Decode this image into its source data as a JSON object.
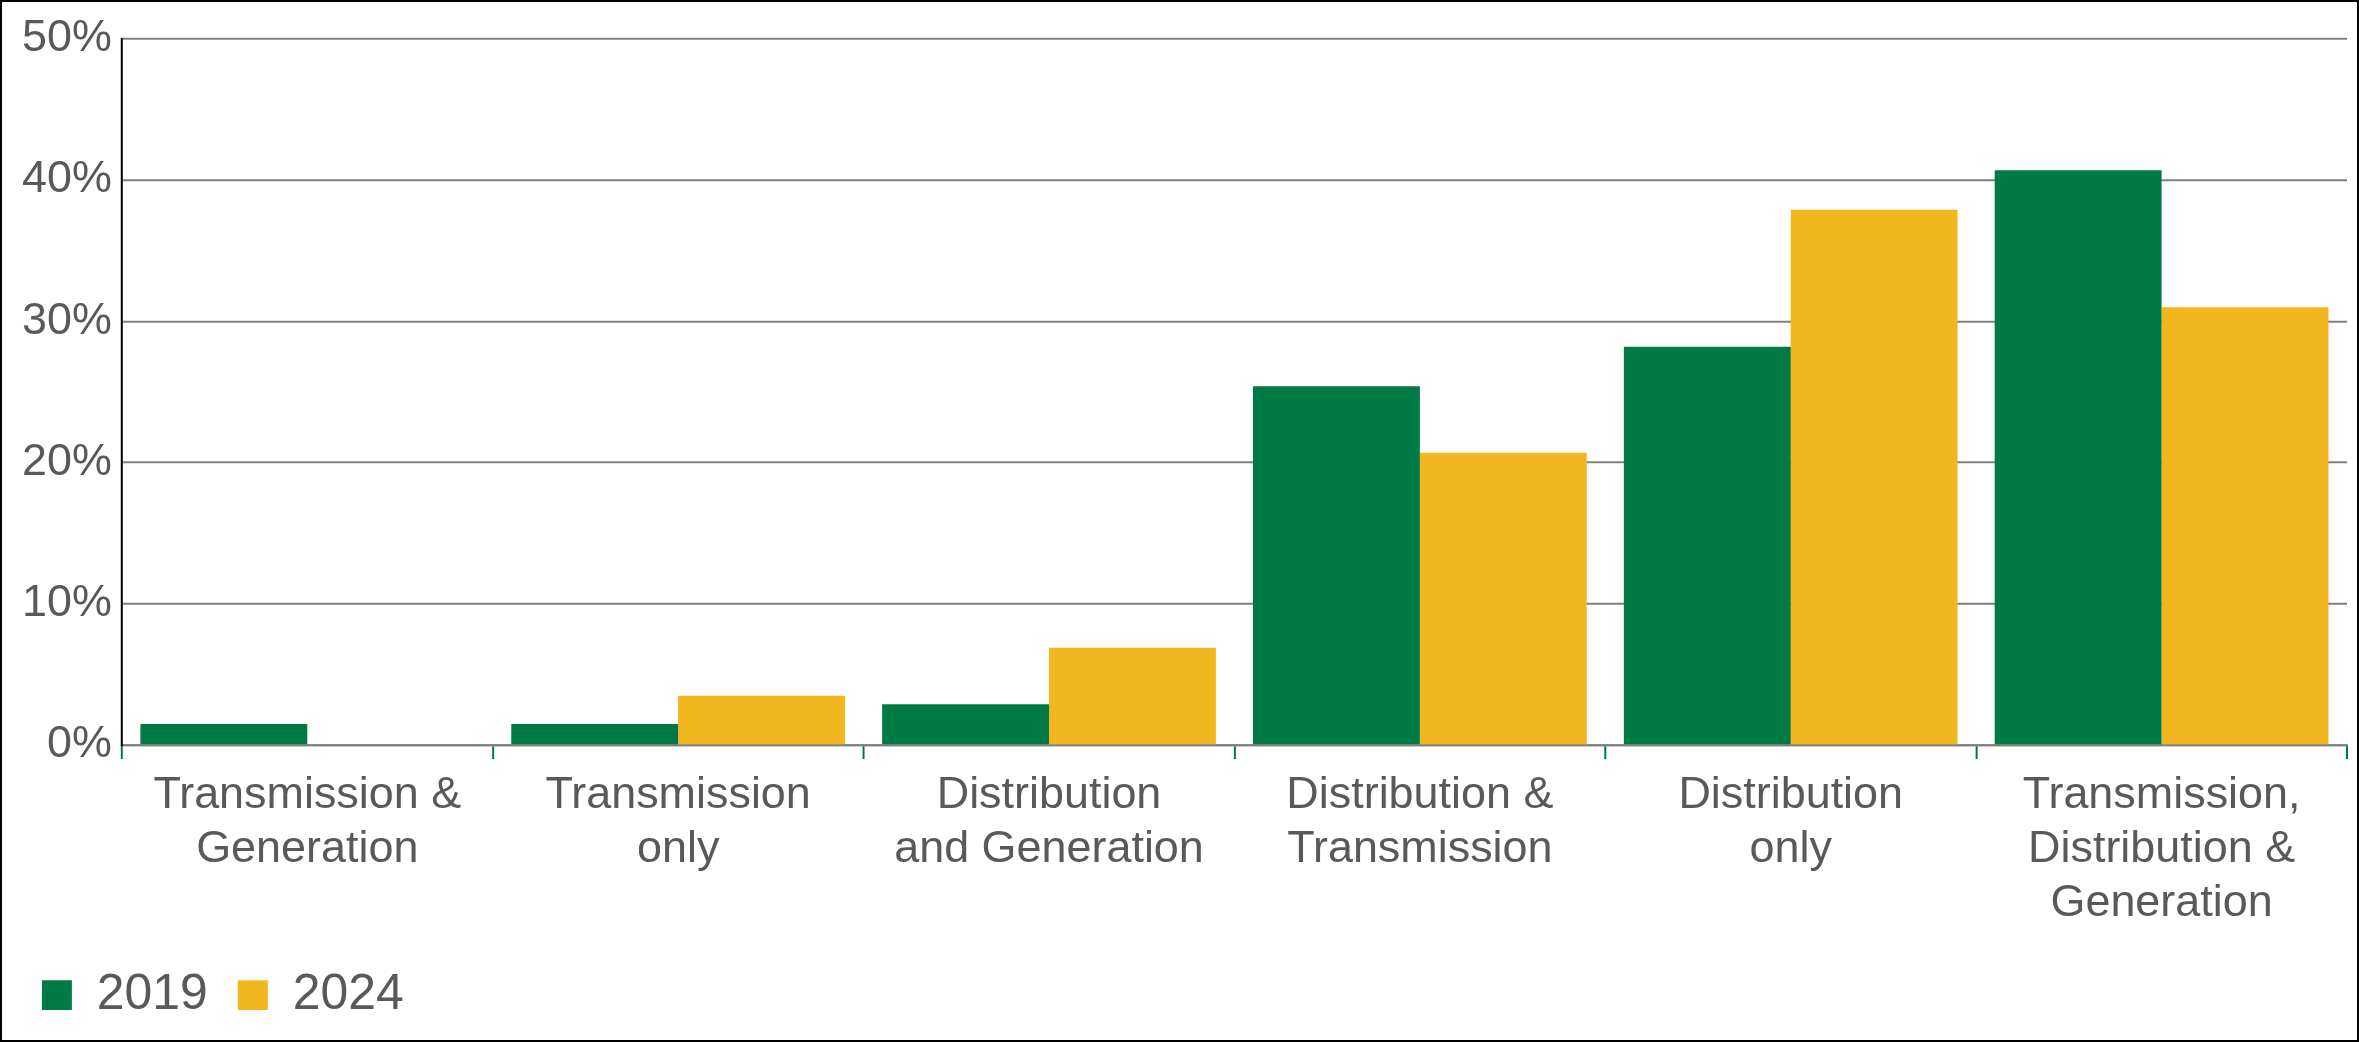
{
  "chart_data": {
    "type": "bar",
    "categories": [
      "Transmission & Generation",
      "Transmission only",
      "Distribution and Generation",
      "Distribution & Transmission",
      "Distribution only",
      "Transmission, Distribution & Generation"
    ],
    "series": [
      {
        "name": "2019",
        "color": "#007a45",
        "values": [
          1.5,
          1.5,
          2.9,
          25.4,
          28.2,
          40.7
        ]
      },
      {
        "name": "2024",
        "color": "#f2b71f",
        "values": [
          0,
          3.5,
          6.9,
          20.7,
          37.9,
          31.0
        ]
      }
    ],
    "ylim": [
      0,
      50
    ],
    "yticks": [
      {
        "value": 0,
        "label": "0%"
      },
      {
        "value": 10,
        "label": "10%"
      },
      {
        "value": 20,
        "label": "20%"
      },
      {
        "value": 30,
        "label": "30%"
      },
      {
        "value": 40,
        "label": "40%"
      },
      {
        "value": 50,
        "label": "50%"
      }
    ],
    "grid": "y",
    "legend": "bottom left"
  }
}
